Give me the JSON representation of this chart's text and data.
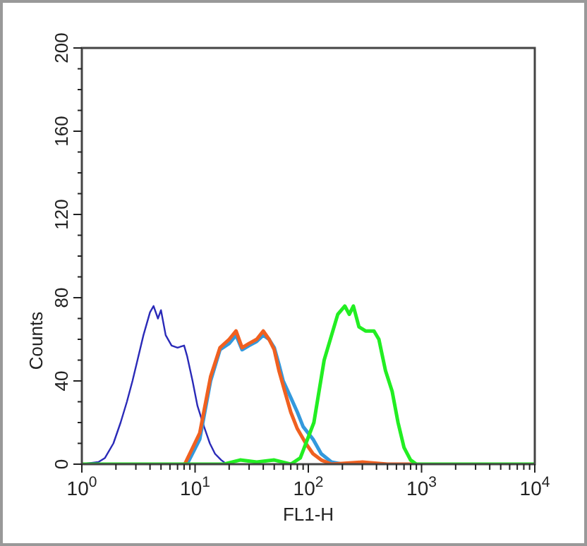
{
  "chart_data": {
    "type": "line",
    "xlabel": "FL1-H",
    "ylabel": "Counts",
    "log": "x",
    "xlim": [
      1,
      10000
    ],
    "ylim": [
      0,
      200
    ],
    "xticks": [
      {
        "value": 1,
        "label": "10$^{0}$"
      },
      {
        "value": 10,
        "label": "10$^{1}$"
      },
      {
        "value": 100,
        "label": "10$^{2}$"
      },
      {
        "value": 1000,
        "label": "10$^{3}$"
      },
      {
        "value": 10000,
        "label": "10$^{4}$"
      }
    ],
    "yticks": [
      0,
      40,
      80,
      120,
      160,
      200
    ],
    "grid": false,
    "marker": "none",
    "line_style": "solid",
    "series": [
      {
        "color": "#2a2ab8",
        "x": [
          1,
          1.4,
          1.6,
          1.9,
          2.2,
          2.5,
          2.8,
          3.1,
          3.5,
          4.0,
          4.3,
          4.7,
          5.0,
          5.5,
          6.2,
          7,
          8,
          8.5,
          9.5,
          10.5,
          12,
          13.5,
          15,
          17,
          19
        ],
        "values": [
          0,
          1,
          3,
          10,
          20,
          30,
          40,
          50,
          62,
          73,
          76,
          70,
          74,
          62,
          57,
          56,
          57,
          52,
          40,
          28,
          18,
          10,
          5,
          2,
          0
        ]
      },
      {
        "color": "#3399dd",
        "x": [
          8.5,
          11,
          13.7,
          16.6,
          20,
          23,
          26,
          30,
          35,
          40,
          45,
          50,
          55,
          60,
          70,
          80,
          90,
          110,
          130,
          160,
          200
        ],
        "values": [
          0,
          12,
          40,
          55,
          58,
          62,
          55,
          57,
          59,
          62,
          60,
          56,
          48,
          40,
          32,
          25,
          18,
          12,
          5,
          1,
          0
        ]
      },
      {
        "color": "#f06020",
        "x": [
          8.1,
          11,
          13.7,
          16.6,
          20,
          23,
          26,
          30,
          35,
          40,
          45,
          50,
          55,
          62,
          70,
          80,
          95,
          110,
          130,
          160,
          300,
          500,
          900
        ],
        "values": [
          0,
          15,
          42,
          56,
          60,
          64,
          56,
          58,
          60,
          64,
          60,
          55,
          45,
          35,
          25,
          17,
          10,
          5,
          2,
          0,
          1,
          0,
          0
        ]
      },
      {
        "color": "#22ee22",
        "x": [
          1,
          18,
          25,
          35,
          50,
          70,
          85,
          112,
          138,
          182,
          210,
          230,
          250,
          280,
          320,
          380,
          420,
          480,
          550,
          620,
          700,
          800,
          900,
          10000
        ],
        "values": [
          0,
          0,
          2,
          1,
          2,
          0,
          3,
          20,
          50,
          72,
          76,
          72,
          76,
          66,
          64,
          64,
          60,
          45,
          35,
          20,
          8,
          2,
          0,
          0
        ]
      }
    ]
  }
}
